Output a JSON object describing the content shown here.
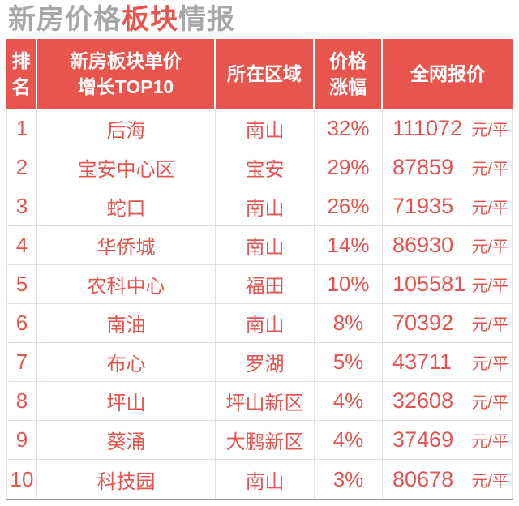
{
  "title": {
    "part1": "新房价格",
    "part2": "板块",
    "part3": "情报"
  },
  "table": {
    "headers": [
      {
        "lines": [
          "排",
          "名"
        ]
      },
      {
        "lines": [
          "新房板块单价",
          "增长TOP10"
        ]
      },
      {
        "lines": [
          "所在区域"
        ]
      },
      {
        "lines": [
          "价格",
          "涨幅"
        ]
      },
      {
        "lines": [
          "全网报价"
        ]
      }
    ],
    "unit": "元/平",
    "rows": [
      {
        "rank": "1",
        "name": "后海",
        "district": "南山",
        "change": "32%",
        "price": "111072"
      },
      {
        "rank": "2",
        "name": "宝安中心区",
        "district": "宝安",
        "change": "29%",
        "price": "87859"
      },
      {
        "rank": "3",
        "name": "蛇口",
        "district": "南山",
        "change": "26%",
        "price": "71935"
      },
      {
        "rank": "4",
        "name": "华侨城",
        "district": "南山",
        "change": "14%",
        "price": "86930"
      },
      {
        "rank": "5",
        "name": "农科中心",
        "district": "福田",
        "change": "10%",
        "price": "105581"
      },
      {
        "rank": "6",
        "name": "南油",
        "district": "南山",
        "change": "8%",
        "price": "70392"
      },
      {
        "rank": "7",
        "name": "布心",
        "district": "罗湖",
        "change": "5%",
        "price": "43711"
      },
      {
        "rank": "8",
        "name": "坪山",
        "district": "坪山新区",
        "change": "4%",
        "price": "32608"
      },
      {
        "rank": "9",
        "name": "葵涌",
        "district": "大鹏新区",
        "change": "4%",
        "price": "37469"
      },
      {
        "rank": "10",
        "name": "科技园",
        "district": "南山",
        "change": "3%",
        "price": "80678"
      }
    ]
  },
  "colors": {
    "accent_red": "#e8544e",
    "text_red": "#e25550",
    "title_gray": "#a7a7a7",
    "grid_line": "#e9dbdb",
    "bottom_rule": "#9e929b",
    "header_text": "#ffffff",
    "background": "#ffffff"
  },
  "chart_data": {
    "type": "table",
    "title": "新房价格板块情报",
    "columns": [
      "排名",
      "新房板块单价增长TOP10",
      "所在区域",
      "价格涨幅",
      "全网报价"
    ],
    "price_unit": "元/平",
    "rows": [
      [
        1,
        "后海",
        "南山",
        "32%",
        111072
      ],
      [
        2,
        "宝安中心区",
        "宝安",
        "29%",
        87859
      ],
      [
        3,
        "蛇口",
        "南山",
        "26%",
        71935
      ],
      [
        4,
        "华侨城",
        "南山",
        "14%",
        86930
      ],
      [
        5,
        "农科中心",
        "福田",
        "10%",
        105581
      ],
      [
        6,
        "南油",
        "南山",
        "8%",
        70392
      ],
      [
        7,
        "布心",
        "罗湖",
        "5%",
        43711
      ],
      [
        8,
        "坪山",
        "坪山新区",
        "4%",
        32608
      ],
      [
        9,
        "葵涌",
        "大鹏新区",
        "4%",
        37469
      ],
      [
        10,
        "科技园",
        "南山",
        "3%",
        80678
      ]
    ]
  }
}
